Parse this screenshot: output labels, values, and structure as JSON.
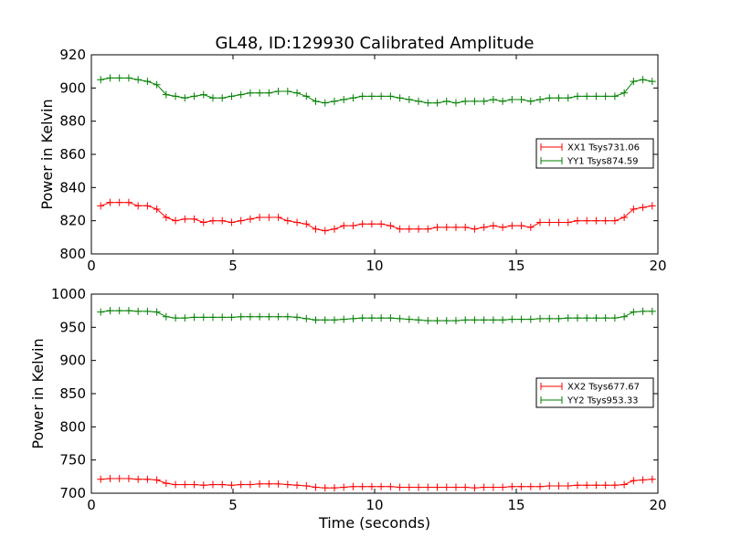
{
  "figure": {
    "title": "GL48, ID:129930 Calibrated Amplitude",
    "xlabel": "Time (seconds)"
  },
  "chart_data": [
    {
      "type": "line",
      "ylabel": "Power in Kelvin",
      "xlim": [
        0,
        20
      ],
      "ylim": [
        800,
        920
      ],
      "xticks": [
        0,
        5,
        10,
        15,
        20
      ],
      "yticks": [
        800,
        820,
        840,
        860,
        880,
        900,
        920
      ],
      "grid": false,
      "legend_position": "right",
      "x": [
        0.33,
        0.66,
        0.99,
        1.32,
        1.65,
        1.98,
        2.31,
        2.64,
        2.97,
        3.3,
        3.63,
        3.96,
        4.29,
        4.62,
        4.95,
        5.28,
        5.61,
        5.94,
        6.27,
        6.6,
        6.93,
        7.26,
        7.59,
        7.92,
        8.25,
        8.58,
        8.91,
        9.24,
        9.57,
        9.9,
        10.23,
        10.56,
        10.89,
        11.22,
        11.55,
        11.88,
        12.21,
        12.54,
        12.87,
        13.2,
        13.53,
        13.86,
        14.19,
        14.52,
        14.85,
        15.18,
        15.51,
        15.84,
        16.17,
        16.5,
        16.83,
        17.16,
        17.49,
        17.82,
        18.15,
        18.48,
        18.81,
        19.14,
        19.47,
        19.8
      ],
      "series": [
        {
          "name": "XX1 Tsys731.06",
          "color": "#ff0000",
          "values": [
            829,
            831,
            831,
            831,
            829,
            829,
            827,
            822,
            820,
            821,
            821,
            819,
            820,
            820,
            819,
            820,
            821,
            822,
            822,
            822,
            820,
            819,
            818,
            815,
            814,
            815,
            817,
            817,
            818,
            818,
            818,
            817,
            815,
            815,
            815,
            815,
            816,
            816,
            816,
            816,
            815,
            816,
            817,
            816,
            817,
            817,
            816,
            819,
            819,
            819,
            819,
            820,
            820,
            820,
            820,
            820,
            822,
            827,
            828,
            829
          ]
        },
        {
          "name": "YY1 Tsys874.59",
          "color": "#008000",
          "values": [
            905,
            906,
            906,
            906,
            905,
            904,
            902,
            896,
            895,
            894,
            895,
            896,
            894,
            894,
            895,
            896,
            897,
            897,
            897,
            898,
            898,
            897,
            895,
            892,
            891,
            892,
            893,
            894,
            895,
            895,
            895,
            895,
            894,
            893,
            892,
            891,
            891,
            892,
            891,
            892,
            892,
            892,
            893,
            892,
            893,
            893,
            892,
            893,
            894,
            894,
            894,
            895,
            895,
            895,
            895,
            895,
            897,
            904,
            905,
            904
          ]
        }
      ]
    },
    {
      "type": "line",
      "ylabel": "Power in Kelvin",
      "xlabel": "Time (seconds)",
      "xlim": [
        0,
        20
      ],
      "ylim": [
        700,
        1000
      ],
      "xticks": [
        0,
        5,
        10,
        15,
        20
      ],
      "yticks": [
        700,
        750,
        800,
        850,
        900,
        950,
        1000
      ],
      "grid": false,
      "legend_position": "right",
      "x": [
        0.33,
        0.66,
        0.99,
        1.32,
        1.65,
        1.98,
        2.31,
        2.64,
        2.97,
        3.3,
        3.63,
        3.96,
        4.29,
        4.62,
        4.95,
        5.28,
        5.61,
        5.94,
        6.27,
        6.6,
        6.93,
        7.26,
        7.59,
        7.92,
        8.25,
        8.58,
        8.91,
        9.24,
        9.57,
        9.9,
        10.23,
        10.56,
        10.89,
        11.22,
        11.55,
        11.88,
        12.21,
        12.54,
        12.87,
        13.2,
        13.53,
        13.86,
        14.19,
        14.52,
        14.85,
        15.18,
        15.51,
        15.84,
        16.17,
        16.5,
        16.83,
        17.16,
        17.49,
        17.82,
        18.15,
        18.48,
        18.81,
        19.14,
        19.47,
        19.8
      ],
      "series": [
        {
          "name": "XX2 Tsys677.67",
          "color": "#ff0000",
          "values": [
            721,
            722,
            722,
            722,
            721,
            721,
            720,
            715,
            713,
            713,
            713,
            712,
            713,
            713,
            712,
            713,
            713,
            714,
            714,
            714,
            713,
            712,
            711,
            709,
            708,
            708,
            709,
            710,
            710,
            710,
            710,
            710,
            709,
            709,
            709,
            709,
            709,
            709,
            709,
            709,
            708,
            709,
            709,
            709,
            710,
            710,
            710,
            710,
            711,
            711,
            711,
            712,
            712,
            712,
            712,
            712,
            713,
            719,
            720,
            721
          ]
        },
        {
          "name": "YY2 Tsys953.33",
          "color": "#008000",
          "values": [
            973,
            975,
            975,
            975,
            974,
            974,
            973,
            966,
            964,
            964,
            965,
            965,
            965,
            965,
            965,
            966,
            966,
            966,
            966,
            966,
            966,
            965,
            963,
            961,
            961,
            961,
            962,
            963,
            964,
            964,
            964,
            964,
            963,
            962,
            961,
            960,
            960,
            960,
            960,
            961,
            961,
            961,
            961,
            961,
            962,
            962,
            962,
            963,
            963,
            963,
            964,
            964,
            964,
            964,
            964,
            964,
            966,
            973,
            974,
            974
          ]
        }
      ]
    }
  ]
}
